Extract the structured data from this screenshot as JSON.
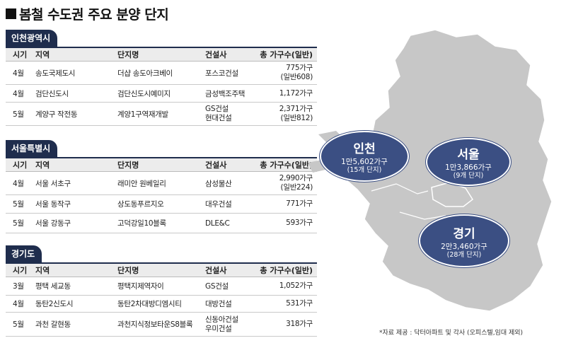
{
  "title": "봄철 수도권 주요 분양 단지",
  "headers": [
    "시기",
    "지역",
    "단지명",
    "건설사",
    "총 가구수(일반)"
  ],
  "sections": [
    {
      "label": "인천광역시",
      "rows": [
        {
          "month": "4월",
          "area": "송도국제도시",
          "name": "더샵 송도아크베이",
          "builder": [
            "포스코건설"
          ],
          "units": [
            "775가구",
            "(일반608)"
          ]
        },
        {
          "month": "4월",
          "area": "검단신도시",
          "name": "검단신도시예미지",
          "builder": [
            "금성백조주택"
          ],
          "units": [
            "1,172가구"
          ]
        },
        {
          "month": "5월",
          "area": "계양구 작전동",
          "name": "계양1구역재개발",
          "builder": [
            "GS건설",
            "현대건설"
          ],
          "units": [
            "2,371가구",
            "(일반812)"
          ]
        }
      ]
    },
    {
      "label": "서울특별시",
      "rows": [
        {
          "month": "4월",
          "area": "서울 서초구",
          "name": "래미안 원베일리",
          "builder": [
            "삼성물산"
          ],
          "units": [
            "2,990가구",
            "(일반224)"
          ]
        },
        {
          "month": "5월",
          "area": "서울 동작구",
          "name": "상도동푸르지오",
          "builder": [
            "대우건설"
          ],
          "units": [
            "771가구"
          ]
        },
        {
          "month": "5월",
          "area": "서울 강동구",
          "name": "고덕강일10블록",
          "builder": [
            "DLE&C"
          ],
          "units": [
            "593가구"
          ]
        }
      ]
    },
    {
      "label": "경기도",
      "rows": [
        {
          "month": "3월",
          "area": "평택 세교동",
          "name": "평택지제역자이",
          "builder": [
            "GS건설"
          ],
          "units": [
            "1,052가구"
          ]
        },
        {
          "month": "4월",
          "area": "동탄2신도시",
          "name": "동탄2차대방디엠시티",
          "builder": [
            "대방건설"
          ],
          "units": [
            "531가구"
          ]
        },
        {
          "month": "5월",
          "area": "과천 갈현동",
          "name": "과천지식정보타운S8블록",
          "builder": [
            "신동아건설",
            "우미건설"
          ],
          "units": [
            "318가구"
          ]
        }
      ]
    }
  ],
  "map": {
    "incheon": {
      "name": "인천",
      "count": "1만5,602가구",
      "sub": "(15개 단지)"
    },
    "seoul": {
      "name": "서울",
      "count": "1만3,866가구",
      "sub": "(9개 단지)"
    },
    "gyeonggi": {
      "name": "경기",
      "count": "2만3,460가구",
      "sub": "(28개 단지)"
    }
  },
  "source": "*자료 제공 : 닥터아파트 및 각사 (오피스텔,임대 제외)",
  "colors": {
    "navy": "#1f2d4d",
    "bubble": "#3b4f83",
    "map": "#c7c7c7"
  }
}
